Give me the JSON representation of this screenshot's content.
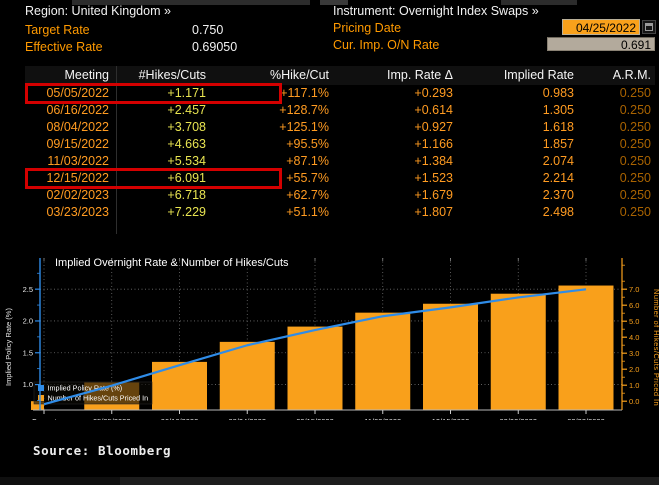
{
  "header": {
    "region_label": "Region: United Kingdom »",
    "target_rate_label": "Target Rate",
    "target_rate_value": "0.750",
    "effective_rate_label": "Effective Rate",
    "effective_rate_value": "0.69050",
    "instrument_label": "Instrument: Overnight Index Swaps »",
    "pricing_date_label": "Pricing Date",
    "pricing_date_value": "04/25/2022",
    "cur_imp_rate_label": "Cur. Imp. O/N Rate",
    "cur_imp_rate_value": "0.691"
  },
  "table": {
    "columns": [
      "Meeting",
      "#Hikes/Cuts",
      "%Hike/Cut",
      "Imp. Rate Δ",
      "Implied Rate",
      "A.R.M."
    ],
    "rows": [
      [
        "05/05/2022",
        "+1.171",
        "+117.1%",
        "+0.293",
        "0.983",
        "0.250"
      ],
      [
        "06/16/2022",
        "+2.457",
        "+128.7%",
        "+0.614",
        "1.305",
        "0.250"
      ],
      [
        "08/04/2022",
        "+3.708",
        "+125.1%",
        "+0.927",
        "1.618",
        "0.250"
      ],
      [
        "09/15/2022",
        "+4.663",
        "+95.5%",
        "+1.166",
        "1.857",
        "0.250"
      ],
      [
        "11/03/2022",
        "+5.534",
        "+87.1%",
        "+1.384",
        "2.074",
        "0.250"
      ],
      [
        "12/15/2022",
        "+6.091",
        "+55.7%",
        "+1.523",
        "2.214",
        "0.250"
      ],
      [
        "02/02/2023",
        "+6.718",
        "+62.7%",
        "+1.679",
        "2.370",
        "0.250"
      ],
      [
        "03/23/2023",
        "+7.229",
        "+51.1%",
        "+1.807",
        "2.498",
        "0.250"
      ]
    ],
    "highlighted_rows": [
      0,
      5
    ],
    "highlight_color": "#d40000"
  },
  "chart_data": {
    "type": "bar+line",
    "title": "Implied Overnight Rate & Number of Hikes/Cuts",
    "categories": [
      "Current",
      "05/05/2022",
      "06/16/2022",
      "08/04/2022",
      "09/15/2022",
      "11/03/2022",
      "12/15/2022",
      "02/02/2023",
      "03/23/2023"
    ],
    "series": [
      {
        "name": "Implied Policy Rate (%)",
        "type": "line",
        "axis": "left",
        "color": "#2f8ce8",
        "values": [
          0.691,
          0.983,
          1.305,
          1.618,
          1.857,
          2.074,
          2.214,
          2.37,
          2.498
        ]
      },
      {
        "name": "Number of Hikes/Cuts Priced In",
        "type": "bar",
        "axis": "right",
        "color": "#f9a01b",
        "values": [
          0.0,
          1.171,
          2.457,
          3.708,
          4.663,
          5.534,
          6.091,
          6.718,
          7.229
        ]
      }
    ],
    "left_axis": {
      "label": "Implied Policy Rate (%)",
      "min": 0.6,
      "max": 2.99,
      "ticks": [
        1.0,
        1.5,
        2.0,
        2.5
      ]
    },
    "right_axis": {
      "label": "Number of Hikes/Cuts Priced In",
      "min": -0.55,
      "max": 8.95,
      "ticks": [
        0.0,
        1.0,
        2.0,
        3.0,
        4.0,
        5.0,
        6.0,
        7.0
      ]
    },
    "grid": "dotted",
    "legend_position": "bottom-left"
  },
  "source_text": "Source: Bloomberg",
  "colors": {
    "background": "#000000",
    "amber_label": "#ff9a00",
    "table_value_orange": "#ff9b21",
    "table_value_yellow": "#e8e451",
    "table_value_dim": "#a96300",
    "highlight_red": "#d40000",
    "line_blue": "#2f8ce8",
    "bar_orange": "#f9a01b"
  }
}
